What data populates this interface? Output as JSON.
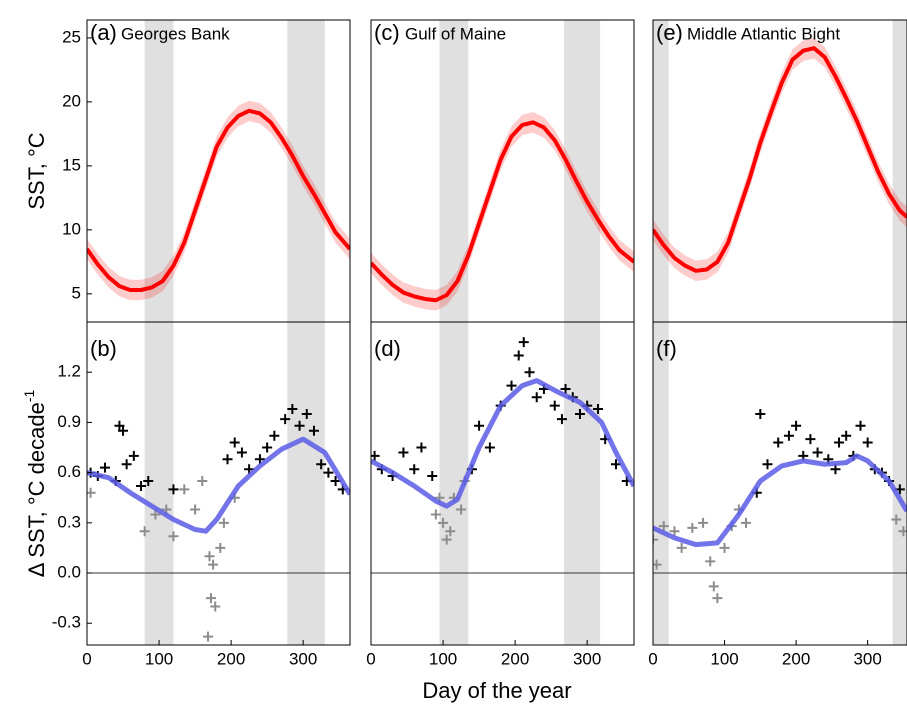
{
  "chart_data": [
    {
      "type": "line",
      "panel_label": "(a)",
      "title": "Georges Bank",
      "ylabel": "SST, °C",
      "xlim": [
        0,
        365
      ],
      "ylim": [
        2.8,
        26.4
      ],
      "yticks": [
        5,
        10,
        15,
        20,
        25
      ],
      "shaded": [
        [
          80,
          120
        ],
        [
          278,
          330
        ]
      ],
      "shade_color": "#e0e0e0",
      "series": [
        {
          "kind": "line",
          "color": "#ff0000",
          "error": 0.8,
          "x": [
            0,
            15,
            30,
            45,
            60,
            75,
            90,
            105,
            120,
            135,
            150,
            165,
            180,
            195,
            210,
            225,
            240,
            255,
            270,
            285,
            300,
            315,
            330,
            345,
            365
          ],
          "values": [
            8.5,
            7.3,
            6.3,
            5.6,
            5.3,
            5.3,
            5.5,
            6,
            7.2,
            9,
            11.5,
            14,
            16.5,
            18,
            18.9,
            19.3,
            19.1,
            18.4,
            17.2,
            15.8,
            14.2,
            12.8,
            11.3,
            9.8,
            8.5
          ]
        }
      ]
    },
    {
      "type": "combo",
      "panel_label": "(b)",
      "ylabel": "Δ SST, °C decade",
      "ylabel_sup": "-1",
      "xlim": [
        0,
        365
      ],
      "ylim": [
        -0.43,
        1.5
      ],
      "xticks": [
        0,
        100,
        200,
        300
      ],
      "yticks": [
        -0.3,
        {
          "value": 0,
          "label": "0.0"
        },
        0.3,
        0.6,
        0.9,
        1.2
      ],
      "zero_line": true,
      "shaded": [
        [
          80,
          120
        ],
        [
          278,
          330
        ]
      ],
      "shade_color": "#e0e0e0",
      "series": [
        {
          "kind": "scatter",
          "color": "#8c8c8c",
          "x": [
            5,
            80,
            95,
            110,
            120,
            135,
            150,
            160,
            170,
            172,
            178,
            168,
            185,
            190,
            205,
            175
          ],
          "values": [
            0.48,
            0.25,
            0.35,
            0.38,
            0.22,
            0.5,
            0.38,
            0.55,
            0.1,
            -0.15,
            -0.2,
            -0.38,
            0.15,
            0.3,
            0.45,
            0.05
          ]
        },
        {
          "kind": "scatter",
          "color": "#000000",
          "x": [
            5,
            15,
            25,
            40,
            45,
            50,
            55,
            65,
            75,
            85,
            195,
            205,
            215,
            225,
            240,
            260,
            275,
            285,
            295,
            305,
            315,
            325,
            335,
            345,
            355,
            250,
            120
          ],
          "values": [
            0.6,
            0.58,
            0.63,
            0.55,
            0.88,
            0.85,
            0.65,
            0.7,
            0.52,
            0.55,
            0.68,
            0.78,
            0.72,
            0.62,
            0.68,
            0.82,
            0.92,
            0.98,
            0.88,
            0.95,
            0.85,
            0.65,
            0.6,
            0.55,
            0.5,
            0.75,
            0.5
          ]
        },
        {
          "kind": "line",
          "color": "#5a5ae6",
          "x": [
            0,
            30,
            60,
            90,
            120,
            150,
            165,
            180,
            210,
            240,
            270,
            300,
            330,
            365
          ],
          "values": [
            0.6,
            0.57,
            0.48,
            0.4,
            0.32,
            0.26,
            0.25,
            0.32,
            0.52,
            0.64,
            0.74,
            0.8,
            0.72,
            0.47
          ]
        }
      ]
    },
    {
      "type": "line",
      "panel_label": "(c)",
      "title": "Gulf of Maine",
      "xlim": [
        0,
        365
      ],
      "ylim": [
        2.8,
        26.4
      ],
      "shaded": [
        [
          95,
          135
        ],
        [
          268,
          318
        ]
      ],
      "shade_color": "#e0e0e0",
      "series": [
        {
          "kind": "line",
          "color": "#ff0000",
          "error": 0.8,
          "x": [
            0,
            15,
            30,
            45,
            60,
            75,
            90,
            105,
            120,
            135,
            150,
            165,
            180,
            195,
            210,
            225,
            240,
            255,
            270,
            285,
            300,
            315,
            330,
            345,
            365
          ],
          "values": [
            7.4,
            6.5,
            5.7,
            5.1,
            4.8,
            4.6,
            4.5,
            4.9,
            6,
            8,
            10.5,
            13,
            15.5,
            17.3,
            18.2,
            18.4,
            18,
            17,
            15.5,
            13.8,
            12.2,
            10.8,
            9.5,
            8.4,
            7.5
          ]
        }
      ]
    },
    {
      "type": "combo",
      "panel_label": "(d)",
      "xlabel": "Day of the year",
      "xlim": [
        0,
        365
      ],
      "ylim": [
        -0.43,
        1.5
      ],
      "xticks": [
        0,
        100,
        200,
        300
      ],
      "zero_line": true,
      "shaded": [
        [
          95,
          135
        ],
        [
          268,
          318
        ]
      ],
      "shade_color": "#e0e0e0",
      "series": [
        {
          "kind": "scatter",
          "color": "#8c8c8c",
          "x": [
            90,
            100,
            105,
            110,
            115,
            125,
            95,
            130
          ],
          "values": [
            0.35,
            0.3,
            0.2,
            0.25,
            0.45,
            0.38,
            0.45,
            0.55
          ]
        },
        {
          "kind": "scatter",
          "color": "#000000",
          "x": [
            5,
            15,
            30,
            45,
            60,
            70,
            85,
            140,
            150,
            165,
            180,
            195,
            205,
            212,
            220,
            240,
            255,
            265,
            280,
            290,
            300,
            315,
            325,
            340,
            355,
            230,
            270
          ],
          "values": [
            0.7,
            0.62,
            0.58,
            0.72,
            0.62,
            0.75,
            0.58,
            0.62,
            0.88,
            0.75,
            1.0,
            1.12,
            1.3,
            1.38,
            1.2,
            1.1,
            1.0,
            0.92,
            1.05,
            0.95,
            1.0,
            0.98,
            0.8,
            0.65,
            0.55,
            1.05,
            1.1
          ]
        },
        {
          "kind": "line",
          "color": "#5a5ae6",
          "x": [
            0,
            30,
            60,
            90,
            105,
            120,
            150,
            180,
            210,
            230,
            260,
            290,
            320,
            340,
            365
          ],
          "values": [
            0.67,
            0.6,
            0.52,
            0.43,
            0.4,
            0.44,
            0.75,
            1.0,
            1.12,
            1.15,
            1.08,
            1.02,
            0.9,
            0.72,
            0.52
          ]
        }
      ]
    },
    {
      "type": "line",
      "panel_label": "(e)",
      "title": "Middle Atlantic Bight",
      "xlim": [
        0,
        355
      ],
      "ylim": [
        2.8,
        26.4
      ],
      "shaded": [
        [
          0,
          22
        ],
        [
          335,
          355
        ]
      ],
      "shade_color": "#e0e0e0",
      "series": [
        {
          "kind": "line",
          "color": "#ff0000",
          "error": 0.8,
          "x": [
            0,
            15,
            30,
            45,
            60,
            75,
            90,
            105,
            120,
            135,
            150,
            165,
            180,
            195,
            210,
            225,
            240,
            255,
            270,
            285,
            300,
            315,
            330,
            345,
            355
          ],
          "values": [
            10,
            8.8,
            7.8,
            7.2,
            6.8,
            6.9,
            7.5,
            9,
            11.5,
            14,
            16.8,
            19.2,
            21.5,
            23.3,
            24,
            24.2,
            23.5,
            22,
            20.3,
            18.5,
            16.5,
            14.5,
            12.8,
            11.5,
            11
          ]
        }
      ]
    },
    {
      "type": "combo",
      "panel_label": "(f)",
      "xlim": [
        0,
        355
      ],
      "ylim": [
        -0.43,
        1.5
      ],
      "xticks": [
        0,
        100,
        200,
        300
      ],
      "zero_line": true,
      "shaded": [
        [
          0,
          22
        ],
        [
          335,
          355
        ]
      ],
      "shade_color": "#e0e0e0",
      "series": [
        {
          "kind": "scatter",
          "color": "#8c8c8c",
          "x": [
            0,
            5,
            15,
            30,
            40,
            55,
            70,
            80,
            85,
            90,
            100,
            110,
            120,
            130,
            340,
            350
          ],
          "values": [
            0.2,
            0.05,
            0.28,
            0.25,
            0.15,
            0.27,
            0.3,
            0.07,
            -0.08,
            -0.15,
            0.15,
            0.28,
            0.38,
            0.3,
            0.32,
            0.25
          ]
        },
        {
          "kind": "scatter",
          "color": "#000000",
          "x": [
            145,
            150,
            160,
            175,
            190,
            200,
            210,
            220,
            230,
            245,
            260,
            270,
            280,
            290,
            300,
            310,
            320,
            330,
            345,
            255
          ],
          "values": [
            0.48,
            0.95,
            0.65,
            0.78,
            0.82,
            0.88,
            0.7,
            0.8,
            0.72,
            0.68,
            0.78,
            0.82,
            0.7,
            0.88,
            0.78,
            0.62,
            0.6,
            0.55,
            0.5,
            0.62
          ]
        },
        {
          "kind": "line",
          "color": "#5a5ae6",
          "x": [
            0,
            30,
            60,
            90,
            120,
            150,
            180,
            210,
            240,
            270,
            285,
            300,
            330,
            355
          ],
          "values": [
            0.27,
            0.21,
            0.17,
            0.18,
            0.35,
            0.55,
            0.64,
            0.67,
            0.65,
            0.66,
            0.7,
            0.67,
            0.55,
            0.37
          ]
        }
      ]
    }
  ]
}
